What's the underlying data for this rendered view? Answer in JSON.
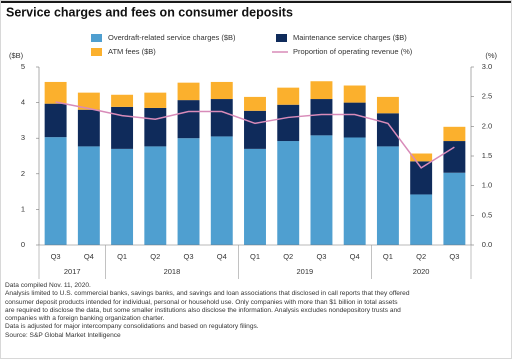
{
  "chart_data": {
    "type": "bar",
    "stacked": true,
    "title": "Service charges and fees on consumer deposits",
    "y_label": "($B)",
    "y2_label": "(%)",
    "categories": [
      "Q3",
      "Q4",
      "Q1",
      "Q2",
      "Q3",
      "Q4",
      "Q1",
      "Q2",
      "Q3",
      "Q4",
      "Q1",
      "Q2",
      "Q3"
    ],
    "years": [
      "2017",
      "2018",
      "2019",
      "2020"
    ],
    "series": [
      {
        "name": "Overdraft-related service charges ($B)",
        "color": "#4f9fd0",
        "values": [
          3.03,
          2.77,
          2.7,
          2.77,
          3.0,
          3.05,
          2.7,
          2.92,
          3.08,
          3.02,
          2.77,
          1.42,
          2.03
        ]
      },
      {
        "name": "Maintenance service charges ($B)",
        "color": "#0f2b5b",
        "values": [
          0.94,
          1.03,
          1.18,
          1.08,
          1.07,
          1.05,
          1.07,
          1.02,
          1.02,
          0.98,
          0.93,
          0.93,
          0.89
        ]
      },
      {
        "name": "ATM fees ($B)",
        "color": "#fbb02d",
        "values": [
          0.61,
          0.48,
          0.34,
          0.43,
          0.49,
          0.48,
          0.39,
          0.48,
          0.5,
          0.48,
          0.46,
          0.22,
          0.4
        ]
      },
      {
        "name": "Proportion of operating revenue (%)",
        "type": "line",
        "axis": "y2",
        "color": "#d88bb9",
        "values": [
          2.41,
          2.3,
          2.18,
          2.12,
          2.25,
          2.25,
          2.05,
          2.15,
          2.2,
          2.2,
          2.05,
          1.3,
          1.65
        ]
      }
    ],
    "ylim": [
      0,
      5
    ],
    "yticks": [
      0,
      1,
      2,
      3,
      4,
      5
    ],
    "y2lim": [
      0,
      3
    ],
    "y2ticks": [
      {
        "value": 0,
        "label": "0.0"
      },
      {
        "value": 0.5,
        "label": "0.5"
      },
      {
        "value": 1,
        "label": "1.0"
      },
      {
        "value": 1.5,
        "label": "1.5"
      },
      {
        "value": 2,
        "label": "2.0"
      },
      {
        "value": 2.5,
        "label": "2.5"
      },
      {
        "value": 3,
        "label": "3.0"
      }
    ],
    "grid": false
  },
  "notes": [
    "Data compiled Nov. 11, 2020.",
    "Analysis limited to U.S. commercial banks, savings banks, and savings and loan associations that disclosed in call reports that they offered",
    "consumer deposit products intended for individual, personal or household use. Only companies with more than $1 billion in total assets",
    "are required to disclose the data, but some smaller institutions also disclose the information. Analysis excludes nondepository trusts and",
    "companies with a foreign banking organization charter.",
    "Data is adjusted for major intercompany consolidations and based on regulatory filings.",
    "Source: S&P Global Market Intelligence"
  ]
}
